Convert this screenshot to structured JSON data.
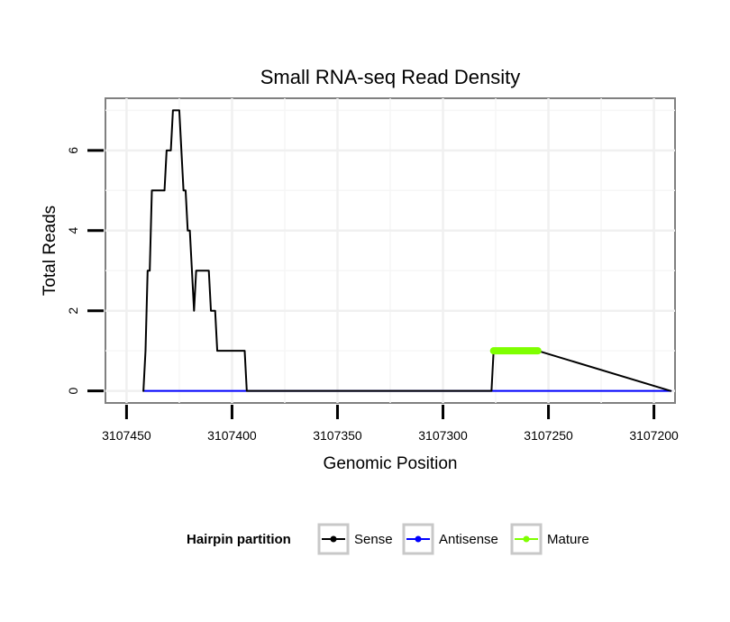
{
  "chart_data": {
    "type": "line",
    "title": "Small RNA-seq Read Density",
    "xlabel": "Genomic Position",
    "ylabel": "Total Reads",
    "x_reversed": true,
    "xlim": [
      3107460,
      3107190
    ],
    "ylim": [
      -0.3,
      7.3
    ],
    "x_ticks": [
      3107450,
      3107400,
      3107350,
      3107300,
      3107250,
      3107200
    ],
    "x_tick_labels": [
      "3107450",
      "3107400",
      "3107350",
      "3107300",
      "3107250",
      "3107200"
    ],
    "y_ticks": [
      0,
      2,
      4,
      6
    ],
    "y_tick_labels": [
      "0",
      "2",
      "4",
      "6"
    ],
    "grid": true,
    "legend": {
      "title": "Hairpin partition",
      "position": "bottom",
      "entries": [
        "Sense",
        "Antisense",
        "Mature"
      ]
    },
    "series": [
      {
        "name": "Sense",
        "color": "#000000",
        "x": [
          3107442,
          3107441,
          3107440,
          3107439,
          3107438,
          3107437,
          3107436,
          3107435,
          3107434,
          3107433,
          3107432,
          3107431,
          3107430,
          3107429,
          3107428,
          3107427,
          3107426,
          3107425,
          3107424,
          3107423,
          3107422,
          3107421,
          3107420,
          3107419,
          3107418,
          3107417,
          3107416,
          3107415,
          3107414,
          3107413,
          3107412,
          3107411,
          3107410,
          3107409,
          3107408,
          3107407,
          3107406,
          3107405,
          3107404,
          3107403,
          3107402,
          3107401,
          3107400,
          3107399,
          3107398,
          3107397,
          3107396,
          3107395,
          3107394,
          3107393,
          3107277,
          3107276,
          3107275,
          3107274,
          3107273,
          3107272,
          3107271,
          3107270,
          3107269,
          3107268,
          3107267,
          3107266,
          3107265,
          3107264,
          3107263,
          3107262,
          3107261,
          3107260,
          3107259,
          3107258,
          3107257,
          3107256,
          3107255,
          3107192
        ],
        "values": [
          0,
          1,
          3,
          3,
          5,
          5,
          5,
          5,
          5,
          5,
          5,
          6,
          6,
          6,
          7,
          7,
          7,
          7,
          6,
          5,
          5,
          4,
          4,
          3,
          2,
          3,
          3,
          3,
          3,
          3,
          3,
          3,
          2,
          2,
          2,
          1,
          1,
          1,
          1,
          1,
          1,
          1,
          1,
          1,
          1,
          1,
          1,
          1,
          1,
          0,
          0,
          1,
          1,
          1,
          1,
          1,
          1,
          1,
          1,
          1,
          1,
          1,
          1,
          1,
          1,
          1,
          1,
          1,
          1,
          1,
          1,
          1,
          1,
          0
        ]
      },
      {
        "name": "Antisense",
        "color": "#0000ff",
        "x": [
          3107442,
          3107192
        ],
        "values": [
          0,
          0
        ]
      },
      {
        "name": "Mature",
        "color": "#7fff00",
        "x": [
          3107276,
          3107255
        ],
        "values": [
          1,
          1
        ]
      }
    ]
  }
}
